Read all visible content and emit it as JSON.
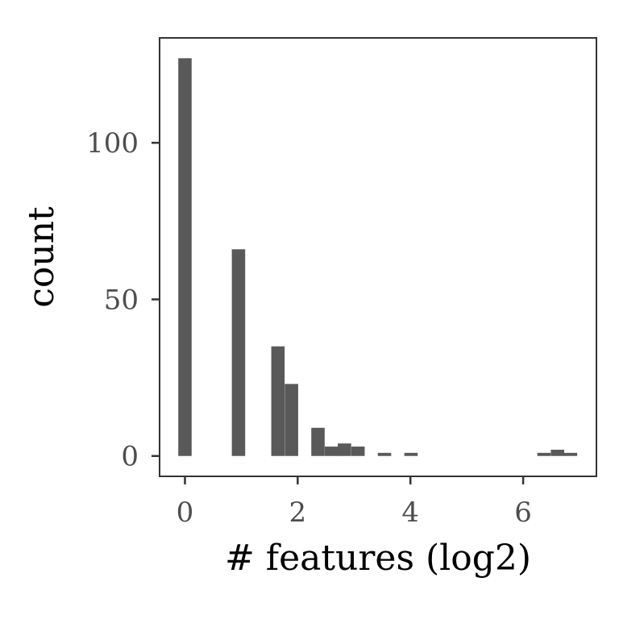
{
  "chart_data": {
    "type": "bar",
    "xlabel": "# features (log2)",
    "ylabel": "count",
    "xlim": [
      -0.45,
      7.3
    ],
    "ylim": [
      -6.5,
      133.5
    ],
    "bin_width": 0.237,
    "bars": [
      {
        "x": 0.0,
        "count": 127
      },
      {
        "x": 0.95,
        "count": 66
      },
      {
        "x": 1.65,
        "count": 35
      },
      {
        "x": 1.89,
        "count": 23
      },
      {
        "x": 2.36,
        "count": 9
      },
      {
        "x": 2.6,
        "count": 3
      },
      {
        "x": 2.83,
        "count": 4
      },
      {
        "x": 3.07,
        "count": 3
      },
      {
        "x": 3.54,
        "count": 1
      },
      {
        "x": 4.01,
        "count": 1
      },
      {
        "x": 6.37,
        "count": 1
      },
      {
        "x": 6.61,
        "count": 2
      },
      {
        "x": 6.84,
        "count": 1
      }
    ],
    "x_ticks": [
      {
        "value": 0,
        "label": "0"
      },
      {
        "value": 2,
        "label": "2"
      },
      {
        "value": 4,
        "label": "4"
      },
      {
        "value": 6,
        "label": "6"
      }
    ],
    "y_ticks": [
      {
        "value": 0,
        "label": "0"
      },
      {
        "value": 50,
        "label": "50"
      },
      {
        "value": 100,
        "label": "100"
      }
    ],
    "bar_color": "#595959",
    "grid": false,
    "legend": "none"
  }
}
